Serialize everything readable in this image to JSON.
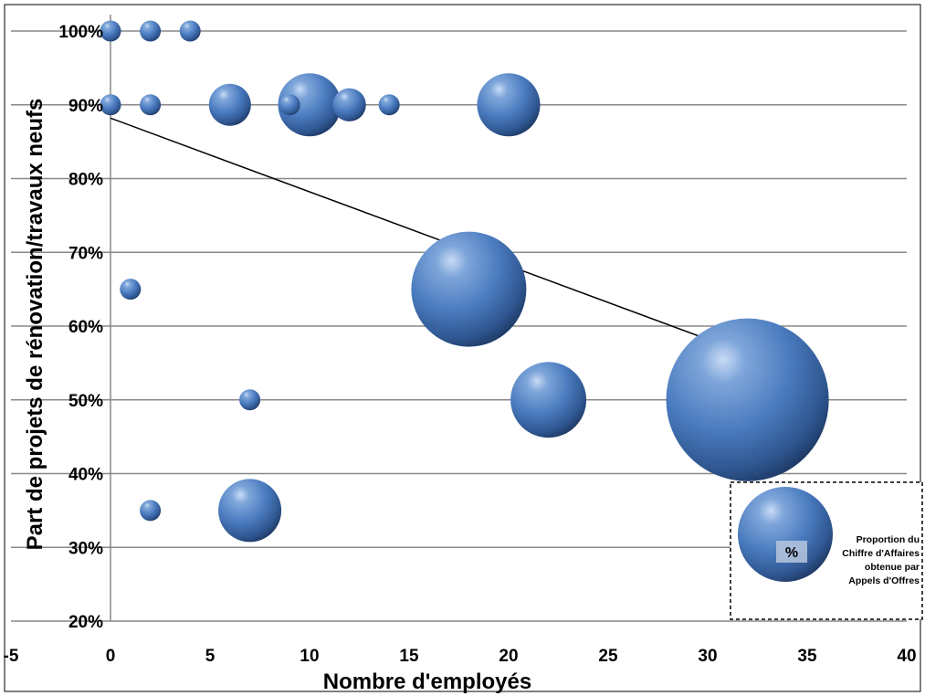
{
  "chart_data": {
    "type": "scatter",
    "subtype": "bubble",
    "title": "",
    "xlabel": "Nombre d'employés",
    "ylabel": "Part de projets de rénovation/travaux neufs",
    "xlim": [
      -5,
      40
    ],
    "ylim": [
      20,
      100
    ],
    "x_ticks": [
      "-5",
      "0",
      "5",
      "10",
      "15",
      "20",
      "25",
      "30",
      "35",
      "40"
    ],
    "y_ticks": [
      "20%",
      "30%",
      "40%",
      "50%",
      "60%",
      "70%",
      "80%",
      "90%",
      "100%"
    ],
    "x_tick_values": [
      -5,
      0,
      5,
      10,
      15,
      20,
      25,
      30,
      35,
      40
    ],
    "y_tick_values": [
      20,
      30,
      40,
      50,
      60,
      70,
      80,
      90,
      100
    ],
    "grid": "horizontal",
    "bubble_color": "#4a7bbf",
    "points": [
      {
        "x": 0,
        "y": 100,
        "size": 1
      },
      {
        "x": 2,
        "y": 100,
        "size": 1
      },
      {
        "x": 4,
        "y": 100,
        "size": 1
      },
      {
        "x": 0,
        "y": 90,
        "size": 1
      },
      {
        "x": 2,
        "y": 90,
        "size": 1
      },
      {
        "x": 6,
        "y": 90,
        "size": 4
      },
      {
        "x": 10,
        "y": 90,
        "size": 9
      },
      {
        "x": 9,
        "y": 90,
        "size": 1
      },
      {
        "x": 12,
        "y": 90,
        "size": 2.5
      },
      {
        "x": 14,
        "y": 90,
        "size": 1
      },
      {
        "x": 20,
        "y": 90,
        "size": 9
      },
      {
        "x": 1,
        "y": 65,
        "size": 1
      },
      {
        "x": 18,
        "y": 65,
        "size": 30
      },
      {
        "x": 7,
        "y": 50,
        "size": 1
      },
      {
        "x": 22,
        "y": 50,
        "size": 13
      },
      {
        "x": 32,
        "y": 50,
        "size": 60
      },
      {
        "x": 2,
        "y": 35,
        "size": 1
      },
      {
        "x": 7,
        "y": 35,
        "size": 9
      }
    ],
    "trendline": {
      "x": [
        0,
        32
      ],
      "y": [
        88.2,
        56.2
      ]
    },
    "legend": {
      "position": "bottom-right",
      "symbol_label": "%",
      "lines": [
        "Proportion du",
        "Chiffre d'Affaires",
        "obtenue par",
        "Appels d'Offres"
      ]
    }
  }
}
